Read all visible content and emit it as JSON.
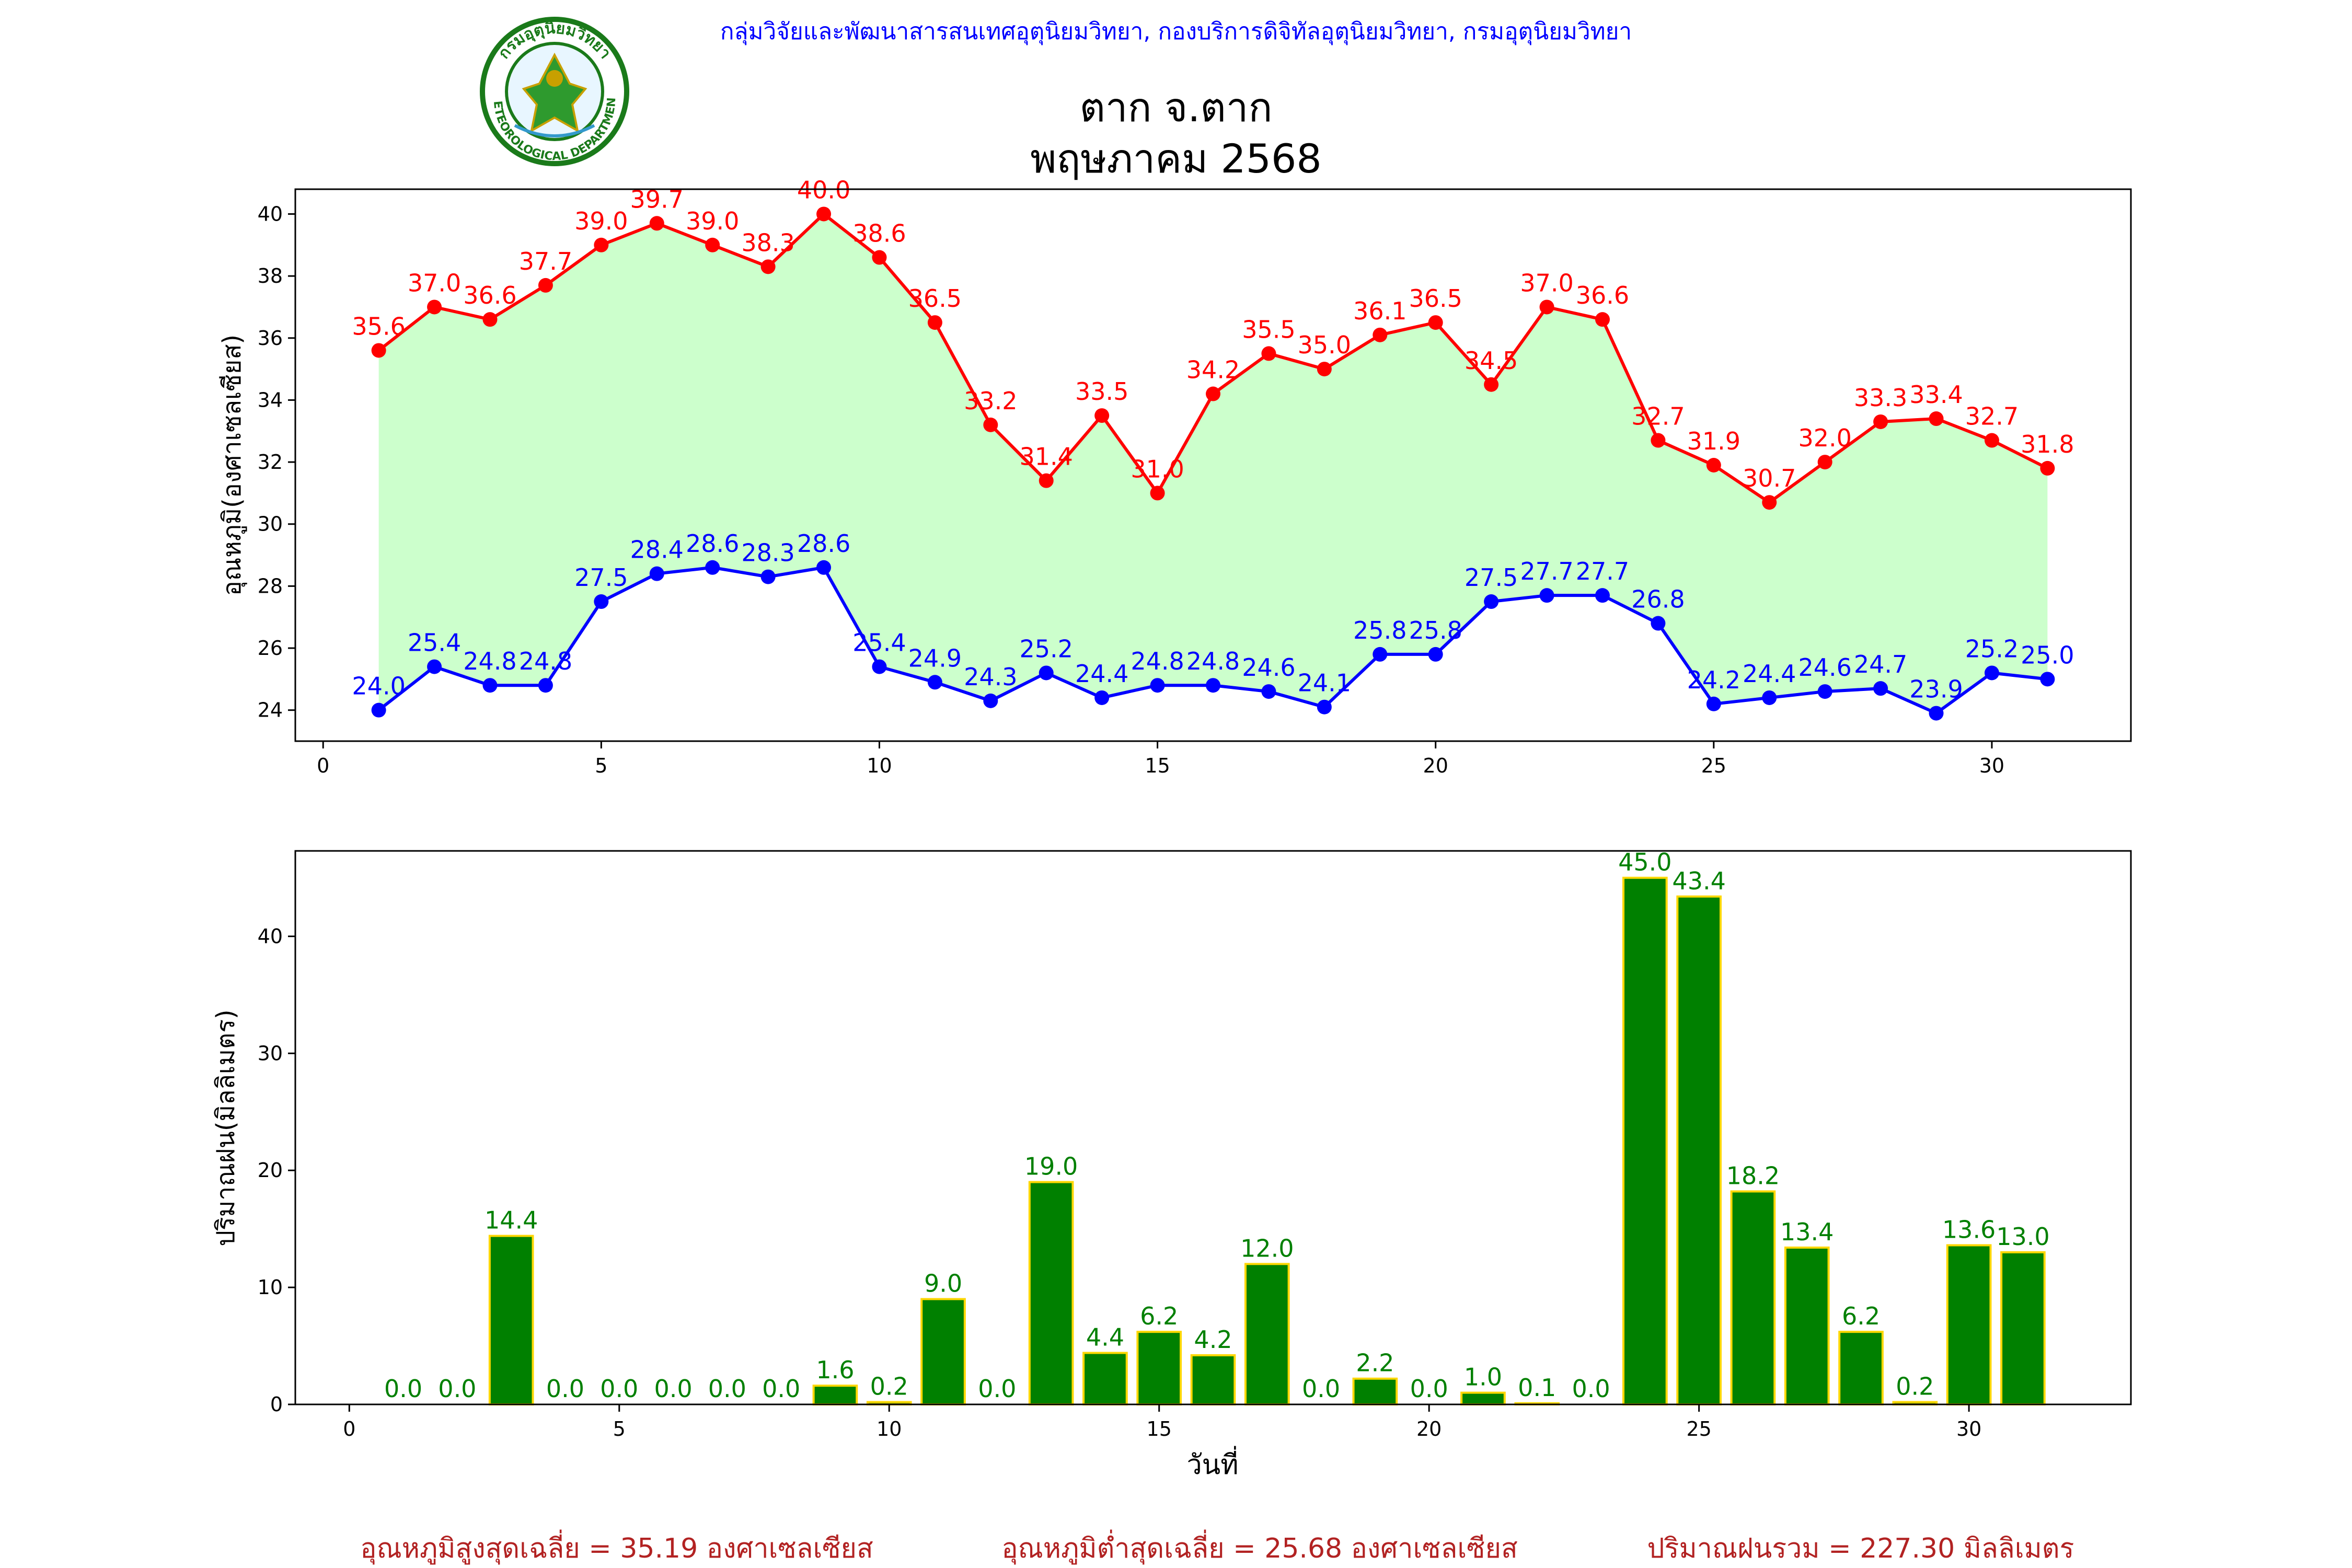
{
  "header": {
    "org_line": "กลุ่มวิจัยและพัฒนาสารสนเทศอุตุนิยมวิทยา, กองบริการดิจิทัลอุตุนิยมวิทยา, กรมอุตุนิยมวิทยา",
    "title_line1": "ตาก จ.ตาก",
    "title_line2": "พฤษภาคม 2568",
    "logo_text_top": "กรมอุตุนิยมวิทยา",
    "logo_text_bottom": "METEOROLOGICAL DEPARTMENT"
  },
  "colors": {
    "max_temp": "#ff0000",
    "min_temp": "#0000ff",
    "temp_fill": "#ccffcc",
    "rain_bar": "#008000",
    "rain_edge": "#ffd700",
    "rain_label": "#008000",
    "header_text": "#0000ff",
    "footer_text": "#b22222"
  },
  "chart_data": [
    {
      "type": "line",
      "ylabel": "อุณหภูมิ(องศาเซลเซียส)",
      "xlim": [
        -0.5,
        32.5
      ],
      "ylim": [
        23,
        40.8
      ],
      "xticks": [
        0,
        5,
        10,
        15,
        20,
        25,
        30
      ],
      "yticks": [
        24,
        26,
        28,
        30,
        32,
        34,
        36,
        38,
        40
      ],
      "grid": false,
      "x": [
        1,
        2,
        3,
        4,
        5,
        6,
        7,
        8,
        9,
        10,
        11,
        12,
        13,
        14,
        15,
        16,
        17,
        18,
        19,
        20,
        21,
        22,
        23,
        24,
        25,
        26,
        27,
        28,
        29,
        30,
        31
      ],
      "series": [
        {
          "key": "max",
          "values": [
            35.6,
            37.0,
            36.6,
            37.7,
            39.0,
            39.7,
            39.0,
            38.3,
            40.0,
            38.6,
            36.5,
            33.2,
            31.4,
            33.5,
            31.0,
            34.2,
            35.5,
            35.0,
            36.1,
            36.5,
            34.5,
            37.0,
            36.6,
            32.7,
            31.9,
            30.7,
            32.0,
            33.3,
            33.4,
            32.7,
            31.8
          ]
        },
        {
          "key": "min",
          "values": [
            24.0,
            25.4,
            24.8,
            24.8,
            27.5,
            28.4,
            28.6,
            28.3,
            28.6,
            25.4,
            24.9,
            24.3,
            25.2,
            24.4,
            24.8,
            24.8,
            24.6,
            24.1,
            25.8,
            25.8,
            27.5,
            27.7,
            27.7,
            26.8,
            24.2,
            24.4,
            24.6,
            24.7,
            23.9,
            25.2,
            25.0
          ]
        }
      ]
    },
    {
      "type": "bar",
      "ylabel": "ปริมาณฝน(มิลลิเมตร)",
      "xlabel": "วันที่",
      "xlim": [
        -1,
        33
      ],
      "ylim": [
        0,
        47.3
      ],
      "xticks": [
        0,
        5,
        10,
        15,
        20,
        25,
        30
      ],
      "yticks": [
        0,
        10,
        20,
        30,
        40
      ],
      "grid": false,
      "x": [
        1,
        2,
        3,
        4,
        5,
        6,
        7,
        8,
        9,
        10,
        11,
        12,
        13,
        14,
        15,
        16,
        17,
        18,
        19,
        20,
        21,
        22,
        23,
        24,
        25,
        26,
        27,
        28,
        29,
        30,
        31
      ],
      "values": [
        0.0,
        0.0,
        14.4,
        0.0,
        0.0,
        0.0,
        0.0,
        0.0,
        1.6,
        0.2,
        9.0,
        0.0,
        19.0,
        4.4,
        6.2,
        4.2,
        12.0,
        0.0,
        2.2,
        0.0,
        1.0,
        0.1,
        0.0,
        45.0,
        43.4,
        18.2,
        13.4,
        6.2,
        0.2,
        13.6,
        13.0
      ]
    }
  ],
  "footer": {
    "avg_max": "อุณหภูมิสูงสุดเฉลี่ย = 35.19 องศาเซลเซียส",
    "avg_min": "อุณหภูมิต่ำสุดเฉลี่ย = 25.68 องศาเซลเซียส",
    "total_rain": "ปริมาณฝนรวม = 227.30 มิลลิเมตร"
  }
}
